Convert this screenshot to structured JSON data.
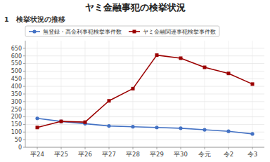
{
  "chart_data": {
    "type": "line",
    "title": "ヤミ金融事犯の検挙状況",
    "subtitle": "1　検挙状況の推移",
    "categories": [
      "平24",
      "平25",
      "平26",
      "平27",
      "平28",
      "平29",
      "平30",
      "令元",
      "令2",
      "令3"
    ],
    "series": [
      {
        "name": "無登録・高金利事犯検挙事件数",
        "color": "#4472C4",
        "marker": "circle",
        "values": [
          190,
          170,
          155,
          140,
          135,
          130,
          125,
          115,
          105,
          88
        ]
      },
      {
        "name": "ヤミ金融関連事犯検挙事件数",
        "color": "#9B0000",
        "marker": "square",
        "values": [
          130,
          170,
          165,
          305,
          385,
          605,
          585,
          525,
          485,
          415
        ]
      }
    ],
    "ylim": [
      0,
      700
    ],
    "yticks": [
      0,
      50,
      100,
      150,
      200,
      250,
      300,
      350,
      400,
      450,
      500,
      550,
      600,
      650
    ],
    "grid": true,
    "legend": "upper left"
  }
}
